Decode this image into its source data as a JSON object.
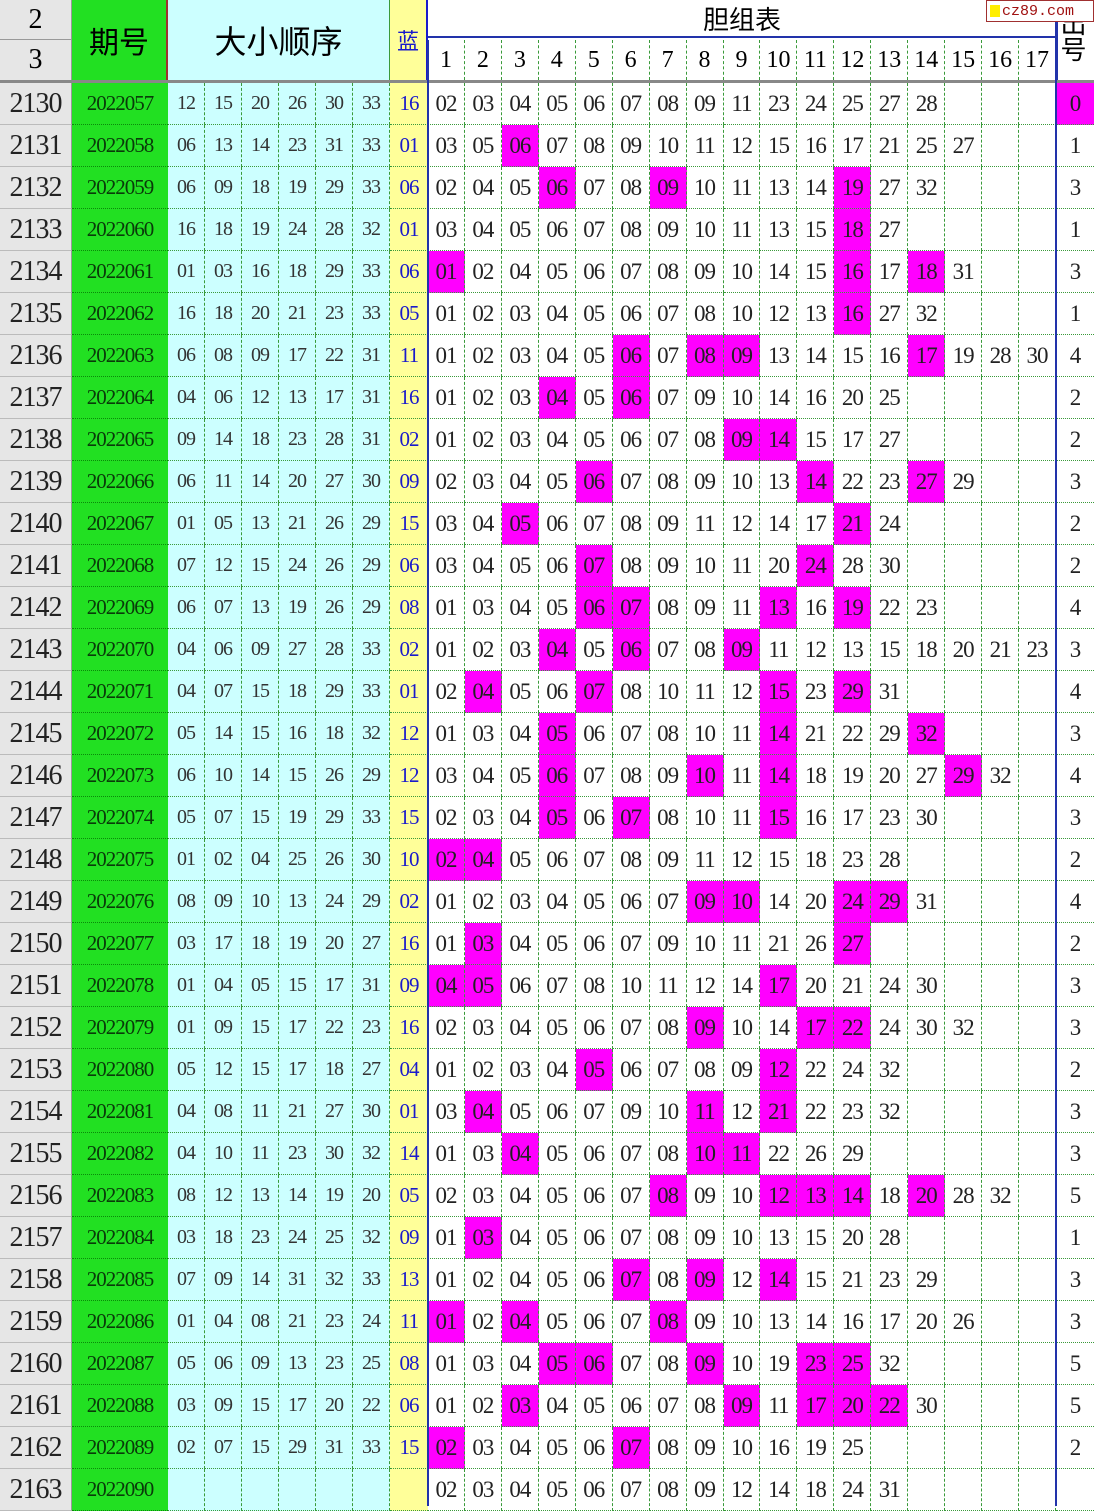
{
  "header": {
    "row_labels": [
      "2",
      "3"
    ],
    "period": "期号",
    "sorted": "大小顺序",
    "blue": "蓝",
    "dan_table": "胆组表",
    "out": "出号",
    "dan_cols": [
      "1",
      "2",
      "3",
      "4",
      "5",
      "6",
      "7",
      "8",
      "9",
      "10",
      "11",
      "12",
      "13",
      "14",
      "15",
      "16",
      "17"
    ],
    "logo": "cz89.com"
  },
  "colors": {
    "highlight": "#ff00ff",
    "period_bg": "#22e022",
    "sorted_bg": "#ccffff",
    "blue_bg": "#ffff99",
    "blue_text": "#1a1acc"
  },
  "rows": [
    {
      "n": "2130",
      "period": "2022057",
      "sorted": [
        "12",
        "15",
        "20",
        "26",
        "30",
        "33"
      ],
      "blue": "16",
      "dan": [
        "02",
        "03",
        "04",
        "05",
        "06",
        "07",
        "08",
        "09",
        "11",
        "23",
        "24",
        "25",
        "27",
        "28"
      ],
      "hits": [],
      "out": "0",
      "out_hit": true
    },
    {
      "n": "2131",
      "period": "2022058",
      "sorted": [
        "06",
        "13",
        "14",
        "23",
        "31",
        "33"
      ],
      "blue": "01",
      "dan": [
        "03",
        "05",
        "06",
        "07",
        "08",
        "09",
        "10",
        "11",
        "12",
        "15",
        "16",
        "17",
        "21",
        "25",
        "27"
      ],
      "hits": [
        "06"
      ],
      "out": "1"
    },
    {
      "n": "2132",
      "period": "2022059",
      "sorted": [
        "06",
        "09",
        "18",
        "19",
        "29",
        "33"
      ],
      "blue": "06",
      "dan": [
        "02",
        "04",
        "05",
        "06",
        "07",
        "08",
        "09",
        "10",
        "11",
        "13",
        "14",
        "19",
        "27",
        "32"
      ],
      "hits": [
        "06",
        "09",
        "19"
      ],
      "out": "3"
    },
    {
      "n": "2133",
      "period": "2022060",
      "sorted": [
        "16",
        "18",
        "19",
        "24",
        "28",
        "32"
      ],
      "blue": "01",
      "dan": [
        "03",
        "04",
        "05",
        "06",
        "07",
        "08",
        "09",
        "10",
        "11",
        "13",
        "15",
        "18",
        "27"
      ],
      "hits": [
        "18"
      ],
      "out": "1"
    },
    {
      "n": "2134",
      "period": "2022061",
      "sorted": [
        "01",
        "03",
        "16",
        "18",
        "29",
        "33"
      ],
      "blue": "06",
      "dan": [
        "01",
        "02",
        "04",
        "05",
        "06",
        "07",
        "08",
        "09",
        "10",
        "14",
        "15",
        "16",
        "17",
        "18",
        "31"
      ],
      "hits": [
        "01",
        "16",
        "18"
      ],
      "out": "3"
    },
    {
      "n": "2135",
      "period": "2022062",
      "sorted": [
        "16",
        "18",
        "20",
        "21",
        "23",
        "33"
      ],
      "blue": "05",
      "dan": [
        "01",
        "02",
        "03",
        "04",
        "05",
        "06",
        "07",
        "08",
        "10",
        "12",
        "13",
        "16",
        "27",
        "32"
      ],
      "hits": [
        "16"
      ],
      "out": "1"
    },
    {
      "n": "2136",
      "period": "2022063",
      "sorted": [
        "06",
        "08",
        "09",
        "17",
        "22",
        "31"
      ],
      "blue": "11",
      "dan": [
        "01",
        "02",
        "03",
        "04",
        "05",
        "06",
        "07",
        "08",
        "09",
        "13",
        "14",
        "15",
        "16",
        "17",
        "19",
        "28",
        "30"
      ],
      "hits": [
        "06",
        "08",
        "09",
        "17"
      ],
      "out": "4"
    },
    {
      "n": "2137",
      "period": "2022064",
      "sorted": [
        "04",
        "06",
        "12",
        "13",
        "17",
        "31"
      ],
      "blue": "16",
      "dan": [
        "01",
        "02",
        "03",
        "04",
        "05",
        "06",
        "07",
        "09",
        "10",
        "14",
        "16",
        "20",
        "25"
      ],
      "hits": [
        "04",
        "06"
      ],
      "out": "2"
    },
    {
      "n": "2138",
      "period": "2022065",
      "sorted": [
        "09",
        "14",
        "18",
        "23",
        "28",
        "31"
      ],
      "blue": "02",
      "dan": [
        "01",
        "02",
        "03",
        "04",
        "05",
        "06",
        "07",
        "08",
        "09",
        "14",
        "15",
        "17",
        "27"
      ],
      "hits": [
        "09",
        "14"
      ],
      "out": "2"
    },
    {
      "n": "2139",
      "period": "2022066",
      "sorted": [
        "06",
        "11",
        "14",
        "20",
        "27",
        "30"
      ],
      "blue": "09",
      "dan": [
        "02",
        "03",
        "04",
        "05",
        "06",
        "07",
        "08",
        "09",
        "10",
        "13",
        "14",
        "22",
        "23",
        "27",
        "29"
      ],
      "hits": [
        "06",
        "14",
        "27"
      ],
      "out": "3"
    },
    {
      "n": "2140",
      "period": "2022067",
      "sorted": [
        "01",
        "05",
        "13",
        "21",
        "26",
        "29"
      ],
      "blue": "15",
      "dan": [
        "03",
        "04",
        "05",
        "06",
        "07",
        "08",
        "09",
        "11",
        "12",
        "14",
        "17",
        "21",
        "24"
      ],
      "hits": [
        "05",
        "21"
      ],
      "out": "2"
    },
    {
      "n": "2141",
      "period": "2022068",
      "sorted": [
        "07",
        "12",
        "15",
        "24",
        "26",
        "29"
      ],
      "blue": "06",
      "dan": [
        "03",
        "04",
        "05",
        "06",
        "07",
        "08",
        "09",
        "10",
        "11",
        "20",
        "24",
        "28",
        "30"
      ],
      "hits": [
        "07",
        "24"
      ],
      "out": "2"
    },
    {
      "n": "2142",
      "period": "2022069",
      "sorted": [
        "06",
        "07",
        "13",
        "19",
        "26",
        "29"
      ],
      "blue": "08",
      "dan": [
        "01",
        "03",
        "04",
        "05",
        "06",
        "07",
        "08",
        "09",
        "11",
        "13",
        "16",
        "19",
        "22",
        "23"
      ],
      "hits": [
        "06",
        "07",
        "13",
        "19"
      ],
      "out": "4"
    },
    {
      "n": "2143",
      "period": "2022070",
      "sorted": [
        "04",
        "06",
        "09",
        "27",
        "28",
        "33"
      ],
      "blue": "02",
      "dan": [
        "01",
        "02",
        "03",
        "04",
        "05",
        "06",
        "07",
        "08",
        "09",
        "11",
        "12",
        "13",
        "15",
        "18",
        "20",
        "21",
        "23"
      ],
      "hits": [
        "04",
        "06",
        "09"
      ],
      "out": "3"
    },
    {
      "n": "2144",
      "period": "2022071",
      "sorted": [
        "04",
        "07",
        "15",
        "18",
        "29",
        "33"
      ],
      "blue": "01",
      "dan": [
        "02",
        "04",
        "05",
        "06",
        "07",
        "08",
        "10",
        "11",
        "12",
        "15",
        "23",
        "29",
        "31"
      ],
      "hits": [
        "04",
        "07",
        "15",
        "29"
      ],
      "out": "4"
    },
    {
      "n": "2145",
      "period": "2022072",
      "sorted": [
        "05",
        "14",
        "15",
        "16",
        "18",
        "32"
      ],
      "blue": "12",
      "dan": [
        "01",
        "03",
        "04",
        "05",
        "06",
        "07",
        "08",
        "10",
        "11",
        "14",
        "21",
        "22",
        "29",
        "32"
      ],
      "hits": [
        "05",
        "14",
        "32"
      ],
      "out": "3"
    },
    {
      "n": "2146",
      "period": "2022073",
      "sorted": [
        "06",
        "10",
        "14",
        "15",
        "26",
        "29"
      ],
      "blue": "12",
      "dan": [
        "03",
        "04",
        "05",
        "06",
        "07",
        "08",
        "09",
        "10",
        "11",
        "14",
        "18",
        "19",
        "20",
        "27",
        "29",
        "32"
      ],
      "hits": [
        "06",
        "10",
        "14",
        "29"
      ],
      "out": "4"
    },
    {
      "n": "2147",
      "period": "2022074",
      "sorted": [
        "05",
        "07",
        "15",
        "19",
        "29",
        "33"
      ],
      "blue": "15",
      "dan": [
        "02",
        "03",
        "04",
        "05",
        "06",
        "07",
        "08",
        "10",
        "11",
        "15",
        "16",
        "17",
        "23",
        "30"
      ],
      "hits": [
        "05",
        "07",
        "15"
      ],
      "out": "3"
    },
    {
      "n": "2148",
      "period": "2022075",
      "sorted": [
        "01",
        "02",
        "04",
        "25",
        "26",
        "30"
      ],
      "blue": "10",
      "dan": [
        "02",
        "04",
        "05",
        "06",
        "07",
        "08",
        "09",
        "11",
        "12",
        "15",
        "18",
        "23",
        "28"
      ],
      "hits": [
        "02",
        "04"
      ],
      "out": "2"
    },
    {
      "n": "2149",
      "period": "2022076",
      "sorted": [
        "08",
        "09",
        "10",
        "13",
        "24",
        "29"
      ],
      "blue": "02",
      "dan": [
        "01",
        "02",
        "03",
        "04",
        "05",
        "06",
        "07",
        "09",
        "10",
        "14",
        "20",
        "24",
        "29",
        "31"
      ],
      "hits": [
        "09",
        "10",
        "24",
        "29"
      ],
      "out": "4"
    },
    {
      "n": "2150",
      "period": "2022077",
      "sorted": [
        "03",
        "17",
        "18",
        "19",
        "20",
        "27"
      ],
      "blue": "16",
      "dan": [
        "01",
        "03",
        "04",
        "05",
        "06",
        "07",
        "09",
        "10",
        "11",
        "21",
        "26",
        "27"
      ],
      "hits": [
        "03",
        "27"
      ],
      "out": "2"
    },
    {
      "n": "2151",
      "period": "2022078",
      "sorted": [
        "01",
        "04",
        "05",
        "15",
        "17",
        "31"
      ],
      "blue": "09",
      "dan": [
        "04",
        "05",
        "06",
        "07",
        "08",
        "10",
        "11",
        "12",
        "14",
        "17",
        "20",
        "21",
        "24",
        "30"
      ],
      "hits": [
        "04",
        "05",
        "17"
      ],
      "out": "3"
    },
    {
      "n": "2152",
      "period": "2022079",
      "sorted": [
        "01",
        "09",
        "15",
        "17",
        "22",
        "23"
      ],
      "blue": "16",
      "dan": [
        "02",
        "03",
        "04",
        "05",
        "06",
        "07",
        "08",
        "09",
        "10",
        "14",
        "17",
        "22",
        "24",
        "30",
        "32"
      ],
      "hits": [
        "09",
        "17",
        "22"
      ],
      "out": "3"
    },
    {
      "n": "2153",
      "period": "2022080",
      "sorted": [
        "05",
        "12",
        "15",
        "17",
        "18",
        "27"
      ],
      "blue": "04",
      "dan": [
        "01",
        "02",
        "03",
        "04",
        "05",
        "06",
        "07",
        "08",
        "09",
        "12",
        "22",
        "24",
        "32"
      ],
      "hits": [
        "05",
        "12"
      ],
      "out": "2"
    },
    {
      "n": "2154",
      "period": "2022081",
      "sorted": [
        "04",
        "08",
        "11",
        "21",
        "27",
        "30"
      ],
      "blue": "01",
      "dan": [
        "03",
        "04",
        "05",
        "06",
        "07",
        "09",
        "10",
        "11",
        "12",
        "21",
        "22",
        "23",
        "32"
      ],
      "hits": [
        "04",
        "11",
        "21"
      ],
      "out": "3"
    },
    {
      "n": "2155",
      "period": "2022082",
      "sorted": [
        "04",
        "10",
        "11",
        "23",
        "30",
        "32"
      ],
      "blue": "14",
      "dan": [
        "01",
        "03",
        "04",
        "05",
        "06",
        "07",
        "08",
        "10",
        "11",
        "22",
        "26",
        "29"
      ],
      "hits": [
        "04",
        "10",
        "11"
      ],
      "out": "3"
    },
    {
      "n": "2156",
      "period": "2022083",
      "sorted": [
        "08",
        "12",
        "13",
        "14",
        "19",
        "20"
      ],
      "blue": "05",
      "dan": [
        "02",
        "03",
        "04",
        "05",
        "06",
        "07",
        "08",
        "09",
        "10",
        "12",
        "13",
        "14",
        "18",
        "20",
        "28",
        "32"
      ],
      "hits": [
        "08",
        "12",
        "13",
        "14",
        "20"
      ],
      "out": "5"
    },
    {
      "n": "2157",
      "period": "2022084",
      "sorted": [
        "03",
        "18",
        "23",
        "24",
        "25",
        "32"
      ],
      "blue": "09",
      "dan": [
        "01",
        "03",
        "04",
        "05",
        "06",
        "07",
        "08",
        "09",
        "10",
        "13",
        "15",
        "20",
        "28"
      ],
      "hits": [
        "03"
      ],
      "out": "1"
    },
    {
      "n": "2158",
      "period": "2022085",
      "sorted": [
        "07",
        "09",
        "14",
        "31",
        "32",
        "33"
      ],
      "blue": "13",
      "dan": [
        "01",
        "02",
        "04",
        "05",
        "06",
        "07",
        "08",
        "09",
        "12",
        "14",
        "15",
        "21",
        "23",
        "29"
      ],
      "hits": [
        "07",
        "09",
        "14"
      ],
      "out": "3"
    },
    {
      "n": "2159",
      "period": "2022086",
      "sorted": [
        "01",
        "04",
        "08",
        "21",
        "23",
        "24"
      ],
      "blue": "11",
      "dan": [
        "01",
        "02",
        "04",
        "05",
        "06",
        "07",
        "08",
        "09",
        "10",
        "13",
        "14",
        "16",
        "17",
        "20",
        "26"
      ],
      "hits": [
        "01",
        "04",
        "08"
      ],
      "out": "3"
    },
    {
      "n": "2160",
      "period": "2022087",
      "sorted": [
        "05",
        "06",
        "09",
        "13",
        "23",
        "25"
      ],
      "blue": "08",
      "dan": [
        "01",
        "03",
        "04",
        "05",
        "06",
        "07",
        "08",
        "09",
        "10",
        "19",
        "23",
        "25",
        "32"
      ],
      "hits": [
        "05",
        "06",
        "09",
        "23",
        "25"
      ],
      "out": "5"
    },
    {
      "n": "2161",
      "period": "2022088",
      "sorted": [
        "03",
        "09",
        "15",
        "17",
        "20",
        "22"
      ],
      "blue": "06",
      "dan": [
        "01",
        "02",
        "03",
        "04",
        "05",
        "06",
        "07",
        "08",
        "09",
        "11",
        "17",
        "20",
        "22",
        "30"
      ],
      "hits": [
        "03",
        "09",
        "17",
        "20",
        "22"
      ],
      "out": "5"
    },
    {
      "n": "2162",
      "period": "2022089",
      "sorted": [
        "02",
        "07",
        "15",
        "29",
        "31",
        "33"
      ],
      "blue": "15",
      "dan": [
        "02",
        "03",
        "04",
        "05",
        "06",
        "07",
        "08",
        "09",
        "10",
        "16",
        "19",
        "25"
      ],
      "hits": [
        "02",
        "07"
      ],
      "out": "2"
    },
    {
      "n": "2163",
      "period": "2022090",
      "sorted": [
        "",
        "",
        "",
        "",
        "",
        ""
      ],
      "blue": "",
      "dan": [
        "02",
        "03",
        "04",
        "05",
        "06",
        "07",
        "08",
        "09",
        "12",
        "14",
        "18",
        "24",
        "31"
      ],
      "hits": [],
      "out": ""
    }
  ]
}
